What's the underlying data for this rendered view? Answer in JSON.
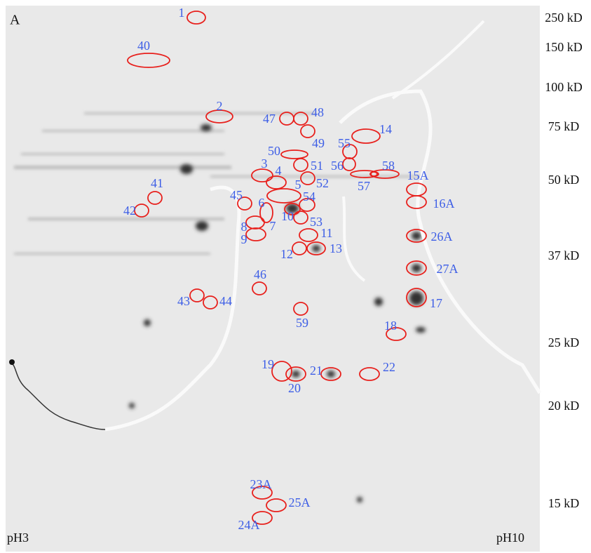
{
  "panel_label": "A",
  "mw_markers": [
    "250 kD",
    "150 kD",
    "100 kD",
    "75 kD",
    "50 kD",
    "37 kD",
    "25 kD",
    "20 kD",
    "15 kD"
  ],
  "ph_labels": {
    "left": "pH3",
    "right": "pH10"
  },
  "spots": [
    "1",
    "40",
    "2",
    "47",
    "48",
    "14",
    "55",
    "50",
    "49",
    "56",
    "51",
    "58",
    "57",
    "15A",
    "3",
    "4",
    "52",
    "5",
    "54",
    "45",
    "41",
    "42",
    "16A",
    "6",
    "10",
    "53",
    "8",
    "7",
    "9",
    "11",
    "26A",
    "12",
    "13",
    "27A",
    "46",
    "17",
    "43",
    "44",
    "59",
    "18",
    "19",
    "21",
    "22",
    "20",
    "23A",
    "25A",
    "24A"
  ]
}
